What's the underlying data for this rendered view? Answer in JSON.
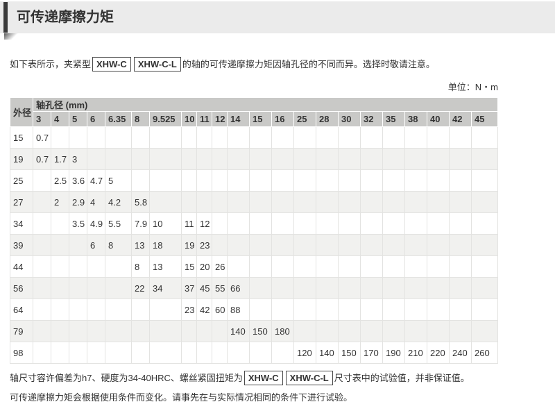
{
  "header": {
    "title": "可传递摩擦力矩"
  },
  "intro": {
    "prefix": "如下表所示，夹紧型",
    "tag1": "XHW-C",
    "tag2": "XHW-C-L",
    "suffix": "的轴的可传递摩擦力矩因轴孔径的不同而异。选择时敬请注意。"
  },
  "unit_label": "单位：N・m",
  "table": {
    "corner_header": "外径",
    "group_header": "轴孔径 (mm)",
    "columns": [
      "3",
      "4",
      "5",
      "6",
      "6.35",
      "8",
      "9.525",
      "10",
      "11",
      "12",
      "14",
      "15",
      "16",
      "25",
      "28",
      "30",
      "32",
      "35",
      "38",
      "40",
      "42",
      "45"
    ],
    "rows": [
      {
        "od": "15",
        "values": [
          "0.7",
          "",
          "",
          "",
          "",
          "",
          "",
          "",
          "",
          "",
          "",
          "",
          "",
          "",
          "",
          "",
          "",
          "",
          "",
          "",
          "",
          ""
        ]
      },
      {
        "od": "19",
        "values": [
          "0.7",
          "1.7",
          "3",
          "",
          "",
          "",
          "",
          "",
          "",
          "",
          "",
          "",
          "",
          "",
          "",
          "",
          "",
          "",
          "",
          "",
          "",
          ""
        ]
      },
      {
        "od": "25",
        "values": [
          "",
          "2.5",
          "3.6",
          "4.7",
          "5",
          "",
          "",
          "",
          "",
          "",
          "",
          "",
          "",
          "",
          "",
          "",
          "",
          "",
          "",
          "",
          "",
          ""
        ]
      },
      {
        "od": "27",
        "values": [
          "",
          "2",
          "2.9",
          "4",
          "4.2",
          "5.8",
          "",
          "",
          "",
          "",
          "",
          "",
          "",
          "",
          "",
          "",
          "",
          "",
          "",
          "",
          "",
          ""
        ]
      },
      {
        "od": "34",
        "values": [
          "",
          "",
          "3.5",
          "4.9",
          "5.5",
          "7.9",
          "10",
          "11",
          "12",
          "",
          "",
          "",
          "",
          "",
          "",
          "",
          "",
          "",
          "",
          "",
          "",
          ""
        ]
      },
      {
        "od": "39",
        "values": [
          "",
          "",
          "",
          "6",
          "8",
          "13",
          "18",
          "19",
          "23",
          "",
          "",
          "",
          "",
          "",
          "",
          "",
          "",
          "",
          "",
          "",
          "",
          ""
        ]
      },
      {
        "od": "44",
        "values": [
          "",
          "",
          "",
          "",
          "",
          "8",
          "13",
          "15",
          "20",
          "26",
          "",
          "",
          "",
          "",
          "",
          "",
          "",
          "",
          "",
          "",
          "",
          ""
        ]
      },
      {
        "od": "56",
        "values": [
          "",
          "",
          "",
          "",
          "",
          "22",
          "34",
          "37",
          "45",
          "55",
          "66",
          "",
          "",
          "",
          "",
          "",
          "",
          "",
          "",
          "",
          "",
          ""
        ]
      },
      {
        "od": "64",
        "values": [
          "",
          "",
          "",
          "",
          "",
          "",
          "",
          "23",
          "42",
          "60",
          "88",
          "",
          "",
          "",
          "",
          "",
          "",
          "",
          "",
          "",
          "",
          ""
        ]
      },
      {
        "od": "79",
        "values": [
          "",
          "",
          "",
          "",
          "",
          "",
          "",
          "",
          "",
          "",
          "140",
          "150",
          "180",
          "",
          "",
          "",
          "",
          "",
          "",
          "",
          "",
          ""
        ]
      },
      {
        "od": "98",
        "values": [
          "",
          "",
          "",
          "",
          "",
          "",
          "",
          "",
          "",
          "",
          "",
          "",
          "",
          "120",
          "140",
          "150",
          "170",
          "190",
          "210",
          "220",
          "240",
          "260"
        ]
      }
    ]
  },
  "notes": {
    "line1_prefix": "轴尺寸容许偏差为h7、硬度为34-40HRC、螺丝紧固扭矩为",
    "tag1": "XHW-C",
    "tag2": "XHW-C-L",
    "line1_suffix": "尺寸表中的试验值，并非保证值。",
    "line2": "可传递摩擦力矩会根据使用条件而变化。请事先在与实际情况相同的条件下进行试验。"
  },
  "colors": {
    "section_bar_bg": "#ebebeb",
    "accent_bar": "#3a3a3a",
    "table_header_bg": "#c9c9c7",
    "row_alt_bg": "#f1f1ef",
    "text": "#333333"
  }
}
